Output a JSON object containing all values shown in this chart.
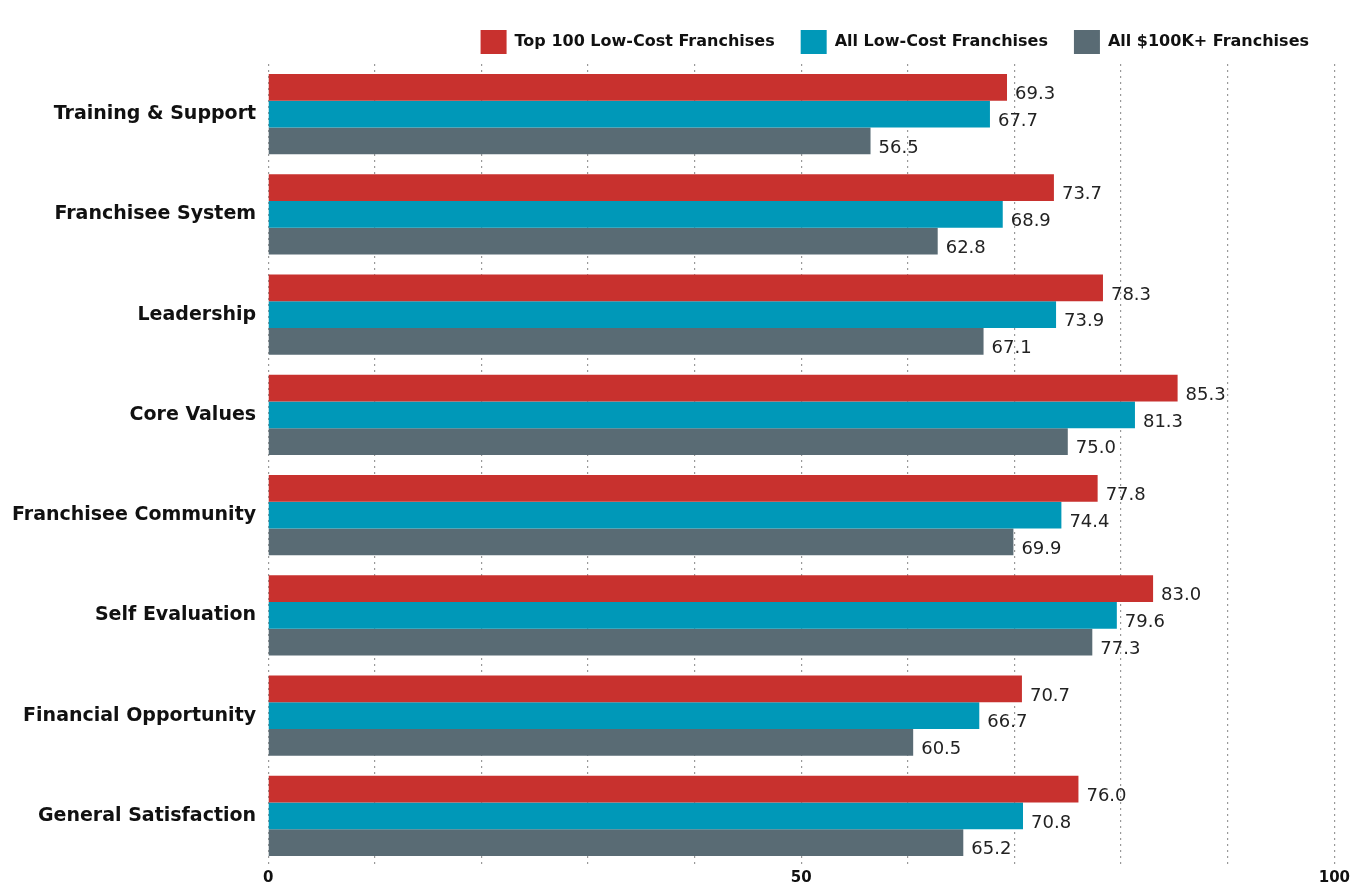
{
  "chart_data": {
    "type": "bar",
    "orientation": "horizontal",
    "categories": [
      "Training & Support",
      "Franchisee System",
      "Leadership",
      "Core Values",
      "Franchisee Community",
      "Self Evaluation",
      "Financial Opportunity",
      "General Satisfaction"
    ],
    "series": [
      {
        "name": "Top 100 Low-Cost Franchises",
        "color": "#c8312e",
        "values": [
          69.3,
          73.7,
          78.3,
          85.3,
          77.8,
          83.0,
          70.7,
          76.0
        ],
        "value_labels": [
          "69.3",
          "73.7",
          "78.3",
          "85.3",
          "77.8",
          "83.0",
          "70.7",
          "76.0"
        ]
      },
      {
        "name": "All Low-Cost Franchises",
        "color": "#0098b8",
        "values": [
          67.7,
          68.9,
          73.9,
          81.3,
          74.4,
          79.6,
          66.7,
          70.8
        ],
        "value_labels": [
          "67.7",
          "68.9",
          "73.9",
          "81.3",
          "74.4",
          "79.6",
          "66.7",
          "70.8"
        ]
      },
      {
        "name": "All $100K+ Franchises",
        "color": "#596b74",
        "values": [
          56.5,
          62.8,
          67.1,
          75.0,
          69.9,
          77.3,
          60.5,
          65.2
        ],
        "value_labels": [
          "56.5",
          "62.8",
          "67.1",
          "75.0",
          "69.9",
          "77.3",
          "60.5",
          "65.2"
        ]
      }
    ],
    "xlim": [
      0,
      100
    ],
    "xticks": [
      0,
      {
        "value": 10,
        "label": null
      },
      {
        "value": 20,
        "label": null
      },
      {
        "value": 30,
        "label": null
      },
      {
        "value": 40,
        "label": null
      },
      50,
      {
        "value": 60,
        "label": null
      },
      {
        "value": 70,
        "label": null
      },
      {
        "value": 80,
        "label": null
      },
      {
        "value": 90,
        "label": null
      },
      100
    ],
    "grid": "x",
    "legend": "top right"
  }
}
